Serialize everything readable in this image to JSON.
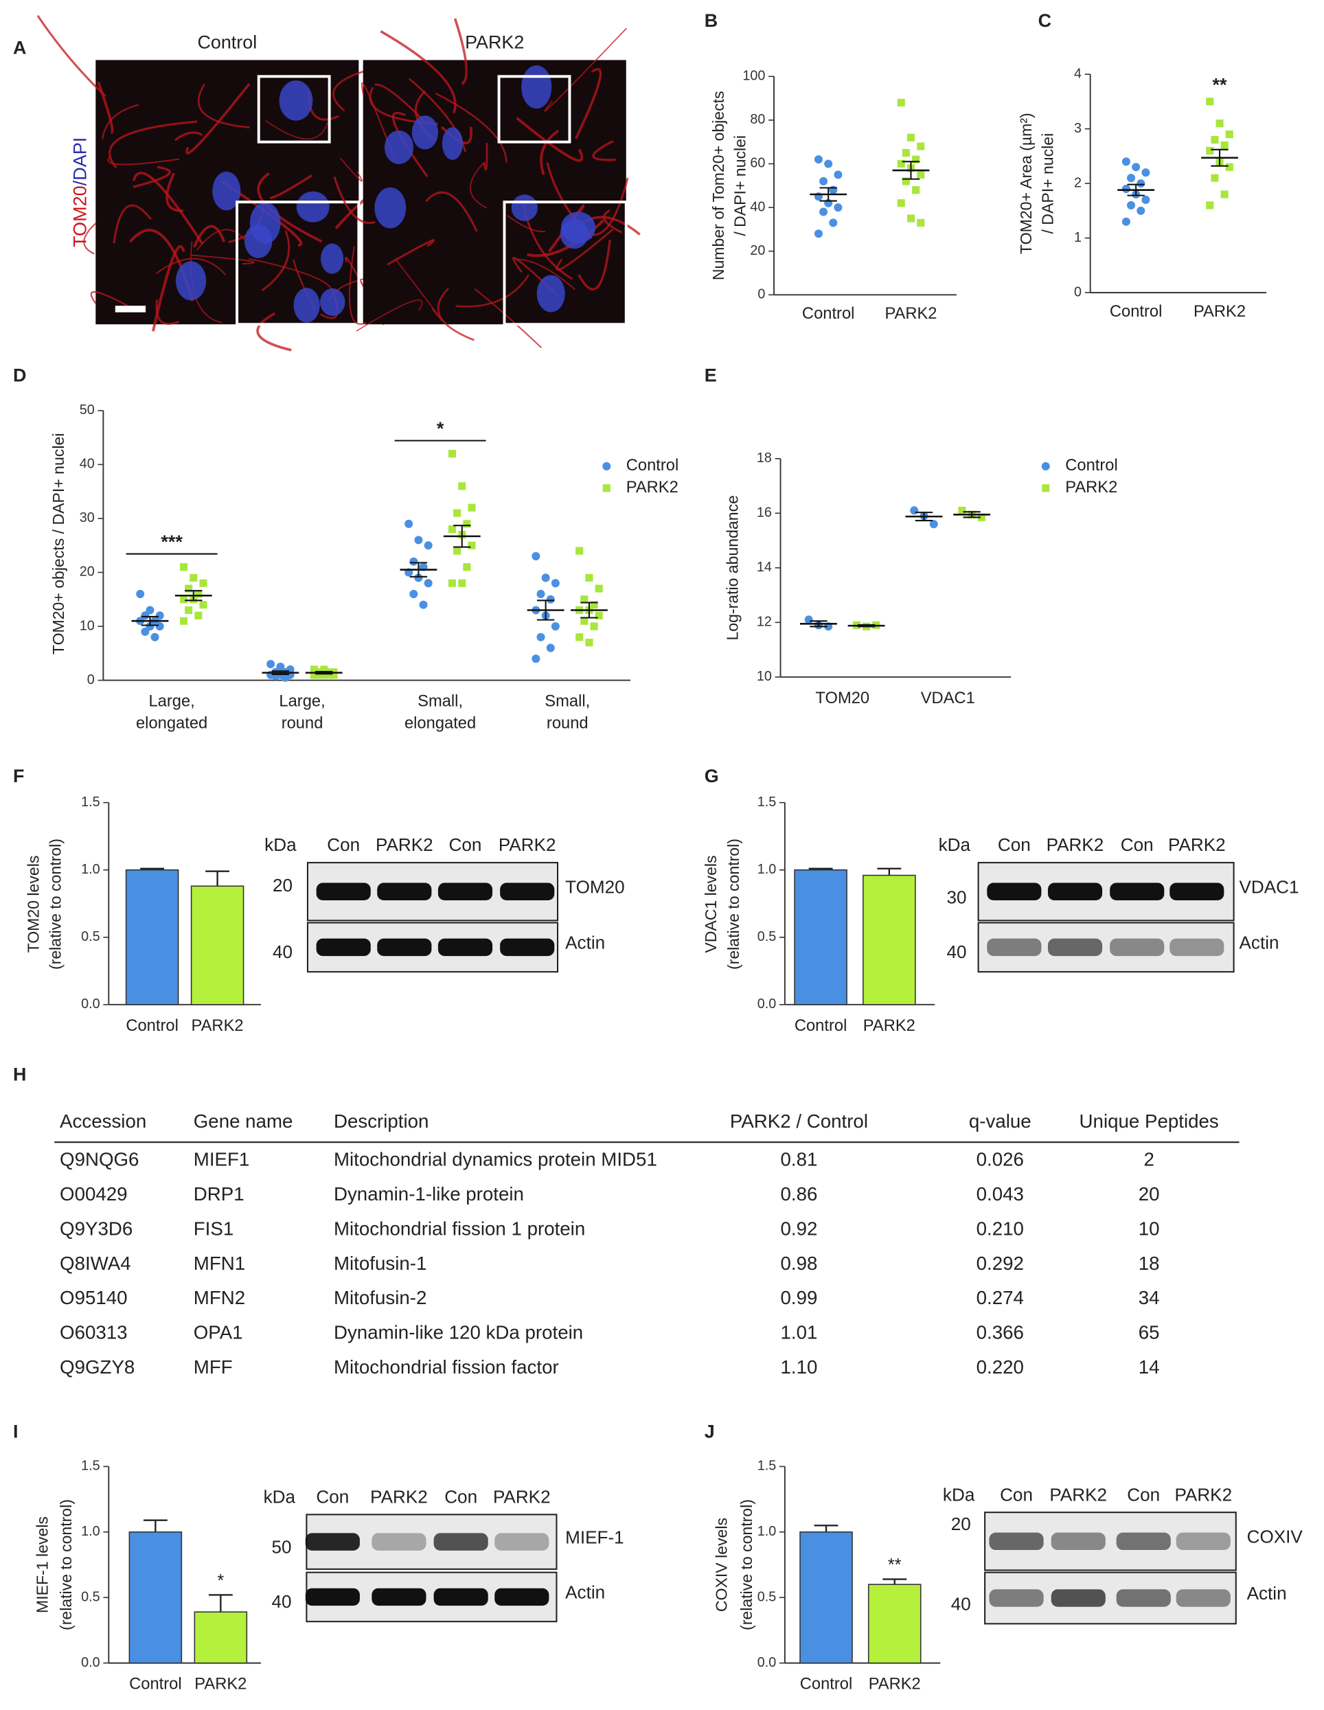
{
  "panels": [
    "A",
    "B",
    "C",
    "D",
    "E",
    "F",
    "G",
    "H",
    "I",
    "J"
  ],
  "images": {
    "titles": [
      "Control",
      "PARK2"
    ],
    "ylabel": [
      "TOM20",
      "/DAPI"
    ]
  },
  "chart_data": [
    {
      "type": "dotplot",
      "ylabel": [
        "Number of Tom20+ objects",
        "/ DAPI+ nuclei"
      ],
      "categories": [
        "Control",
        "PARK2"
      ],
      "ylim": [
        0,
        100
      ],
      "yticks": [
        0,
        20,
        40,
        60,
        80,
        100
      ],
      "series": [
        {
          "color": "#4a90e2",
          "marker": "circle",
          "values": [
            [
              62,
              60,
              55,
              52,
              48,
              45,
              42,
              40,
              38,
              33,
              28
            ],
            null
          ],
          "mean": [
            46,
            null
          ],
          "sem": [
            3,
            null
          ]
        },
        {
          "color": "#a8e63c",
          "marker": "square",
          "values": [
            null,
            [
              88,
              72,
              68,
              65,
              62,
              60,
              58,
              55,
              52,
              48,
              42,
              35,
              33
            ]
          ],
          "mean": [
            null,
            57
          ],
          "sem": [
            null,
            4
          ]
        }
      ],
      "annotations": [
        null,
        null
      ]
    },
    {
      "type": "dotplot",
      "ylabel": [
        "TOM20+ Area (µm²)",
        "/ DAPI+ nuclei"
      ],
      "categories": [
        "Control",
        "PARK2"
      ],
      "ylim": [
        0,
        4
      ],
      "yticks": [
        0,
        1,
        2,
        3,
        4
      ],
      "series": [
        {
          "color": "#4a90e2",
          "marker": "circle",
          "values": [
            [
              2.4,
              2.3,
              2.2,
              2.1,
              2.0,
              1.9,
              1.8,
              1.7,
              1.6,
              1.5,
              1.3
            ],
            null
          ],
          "mean": [
            1.88,
            null
          ],
          "sem": [
            0.1,
            null
          ]
        },
        {
          "color": "#a8e63c",
          "marker": "square",
          "values": [
            null,
            [
              3.5,
              3.1,
              2.9,
              2.8,
              2.7,
              2.6,
              2.4,
              2.3,
              2.1,
              1.8,
              1.6
            ]
          ],
          "mean": [
            null,
            2.47
          ],
          "sem": [
            null,
            0.15
          ]
        }
      ],
      "annotations": [
        null,
        "**"
      ]
    },
    {
      "type": "dotplot",
      "ylabel": [
        "TOM20+ objects  / DAPI+ nuclei"
      ],
      "categories": [
        [
          "Large,",
          "elongated"
        ],
        [
          "Large,",
          "round"
        ],
        [
          "Small,",
          "elongated"
        ],
        [
          "Small,",
          "round"
        ]
      ],
      "ylim": [
        0,
        50
      ],
      "yticks": [
        0,
        10,
        20,
        30,
        40,
        50
      ],
      "legend": true,
      "series": [
        {
          "name": "Control",
          "color": "#4a90e2",
          "marker": "circle",
          "values": [
            [
              16,
              13,
              12,
              12,
              11,
              11,
              10,
              10,
              9,
              8
            ],
            [
              3,
              2.5,
              2,
              1.5,
              1.5,
              1,
              1,
              1,
              0.8,
              0.5
            ],
            [
              29,
              26,
              25,
              22,
              21,
              20,
              19,
              18,
              16,
              14
            ],
            [
              23,
              19,
              18,
              16,
              15,
              13,
              12,
              10,
              8,
              6,
              4
            ]
          ],
          "mean": [
            11,
            1.4,
            20.5,
            13
          ],
          "sem": [
            0.8,
            0.3,
            1.3,
            1.8
          ]
        },
        {
          "name": "PARK2",
          "color": "#a8e63c",
          "marker": "square",
          "values": [
            [
              21,
              19,
              18,
              17,
              16,
              15,
              15,
              14,
              13,
              12,
              11
            ],
            [
              2,
              2,
              1.5,
              1.5,
              1.5,
              1,
              1,
              1,
              1,
              1,
              1
            ],
            [
              42,
              36,
              32,
              31,
              29,
              28,
              27,
              25,
              24,
              21,
              18,
              18
            ],
            [
              24,
              19,
              17,
              15,
              14,
              13,
              13,
              12,
              11,
              10,
              8,
              7
            ]
          ],
          "mean": [
            15.7,
            1.4,
            26.7,
            13
          ],
          "sem": [
            0.9,
            0.2,
            2,
            1.4
          ]
        }
      ],
      "annotations": [
        "***",
        null,
        "*",
        null
      ]
    },
    {
      "type": "dotplot",
      "ylabel": [
        "Log-ratio abundance"
      ],
      "categories": [
        "TOM20",
        "VDAC1"
      ],
      "ylim": [
        10,
        18
      ],
      "yticks": [
        10,
        12,
        14,
        16,
        18
      ],
      "legend": true,
      "series": [
        {
          "name": "Control",
          "color": "#4a90e2",
          "marker": "circle",
          "values": [
            [
              12.1,
              11.9,
              11.85
            ],
            [
              16.1,
              15.9,
              15.6
            ]
          ],
          "mean": [
            11.95,
            15.88
          ],
          "sem": [
            0.1,
            0.15
          ]
        },
        {
          "name": "PARK2",
          "color": "#a8e63c",
          "marker": "square",
          "values": [
            [
              11.9,
              11.85,
              11.9
            ],
            [
              16.1,
              15.95,
              15.85
            ]
          ],
          "mean": [
            11.88,
            15.95
          ],
          "sem": [
            0.03,
            0.1
          ]
        }
      ],
      "annotations": [
        null,
        null
      ]
    },
    {
      "type": "bar",
      "ylabel": [
        "TOM20 levels",
        "(relative to control)"
      ],
      "categories": [
        "Control",
        "PARK2"
      ],
      "values": [
        1.0,
        0.88
      ],
      "errors": [
        0.01,
        0.11
      ],
      "colors": [
        "#4a90e2",
        "#b5f03c"
      ],
      "ylim": [
        0,
        1.5
      ],
      "yticks": [
        {
          "value": 0,
          "label": "0.0"
        },
        0.5,
        {
          "value": 1,
          "label": "1.0"
        },
        1.5
      ],
      "annotations": [
        null,
        null
      ],
      "blot": {
        "unit": "kDa",
        "lanes": [
          "Con",
          "PARK2",
          "Con",
          "PARK2"
        ],
        "markers": [
          20,
          40
        ],
        "bands": [
          "TOM20",
          "Actin"
        ]
      }
    },
    {
      "type": "bar",
      "ylabel": [
        "VDAC1 levels",
        "(relative to control)"
      ],
      "categories": [
        "Control",
        "PARK2"
      ],
      "values": [
        1.0,
        0.96
      ],
      "errors": [
        0.01,
        0.05
      ],
      "colors": [
        "#4a90e2",
        "#b5f03c"
      ],
      "ylim": [
        0,
        1.5
      ],
      "yticks": [
        {
          "value": 0,
          "label": "0.0"
        },
        0.5,
        {
          "value": 1,
          "label": "1.0"
        },
        1.5
      ],
      "annotations": [
        null,
        null
      ],
      "blot": {
        "unit": "kDa",
        "lanes": [
          "Con",
          "PARK2",
          "Con",
          "PARK2"
        ],
        "markers": [
          30,
          40
        ],
        "bands": [
          "VDAC1",
          "Actin"
        ]
      }
    },
    {
      "type": "bar",
      "ylabel": [
        "MIEF-1 levels",
        "(relative to control)"
      ],
      "categories": [
        "Control",
        "PARK2"
      ],
      "values": [
        1.0,
        0.39
      ],
      "errors": [
        0.09,
        0.13
      ],
      "colors": [
        "#4a90e2",
        "#b5f03c"
      ],
      "ylim": [
        0,
        1.5
      ],
      "yticks": [
        {
          "value": 0,
          "label": "0.0"
        },
        0.5,
        {
          "value": 1,
          "label": "1.0"
        },
        1.5
      ],
      "annotations": [
        null,
        "*"
      ],
      "blot": {
        "unit": "kDa",
        "lanes": [
          "Con",
          "PARK2",
          "Con",
          "PARK2"
        ],
        "markers": [
          50,
          40
        ],
        "bands": [
          "MIEF-1",
          "Actin"
        ]
      }
    },
    {
      "type": "bar",
      "ylabel": [
        "COXIV levels",
        "(relative to control)"
      ],
      "categories": [
        "Control",
        "PARK2"
      ],
      "values": [
        1.0,
        0.6
      ],
      "errors": [
        0.05,
        0.04
      ],
      "colors": [
        "#4a90e2",
        "#b5f03c"
      ],
      "ylim": [
        0,
        1.5
      ],
      "yticks": [
        {
          "value": 0,
          "label": "0.0"
        },
        0.5,
        {
          "value": 1,
          "label": "1.0"
        },
        1.5
      ],
      "annotations": [
        null,
        "**"
      ],
      "blot": {
        "unit": "kDa",
        "lanes": [
          "Con",
          "PARK2",
          "Con",
          "PARK2"
        ],
        "markers": [
          20,
          40
        ],
        "bands": [
          "COXIV",
          "Actin"
        ]
      }
    }
  ],
  "table": {
    "columns": [
      "Accession",
      "Gene name",
      "Description",
      "PARK2 / Control",
      "q-value",
      "Unique Peptides"
    ],
    "rows": [
      [
        "Q9NQG6",
        "MIEF1",
        "Mitochondrial dynamics protein MID51",
        "0.81",
        "0.026",
        "2"
      ],
      [
        "O00429",
        "DRP1",
        "Dynamin-1-like protein",
        "0.86",
        "0.043",
        "20"
      ],
      [
        "Q9Y3D6",
        "FIS1",
        "Mitochondrial fission 1 protein",
        "0.92",
        "0.210",
        "10"
      ],
      [
        "Q8IWA4",
        "MFN1",
        "Mitofusin-1",
        "0.98",
        "0.292",
        "18"
      ],
      [
        "O95140",
        "MFN2",
        "Mitofusin-2",
        "0.99",
        "0.274",
        "34"
      ],
      [
        "O60313",
        "OPA1",
        "Dynamin-like 120 kDa protein",
        "1.01",
        "0.366",
        "65"
      ],
      [
        "Q9GZY8",
        "MFF",
        "Mitochondrial fission factor",
        "1.10",
        "0.220",
        "14"
      ]
    ]
  }
}
